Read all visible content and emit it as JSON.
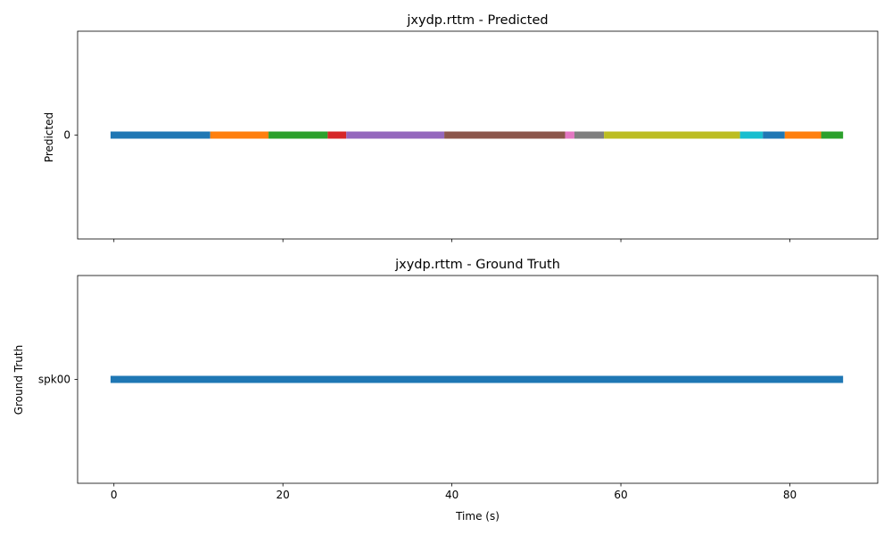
{
  "chart_data": [
    {
      "type": "timeline",
      "title": "jxydp.rttm - Predicted",
      "ylabel": "Predicted",
      "xlabel": "",
      "xlim": [
        -4.3,
        90.4
      ],
      "y_categories": [
        "0"
      ],
      "x_ticks": [
        0,
        20,
        40,
        60,
        80
      ],
      "x_tick_labels_visible": false,
      "segments": [
        {
          "speaker": "0",
          "start": -0.4,
          "end": 11.4,
          "color": "#1f77b4"
        },
        {
          "speaker": "0",
          "start": 11.4,
          "end": 18.3,
          "color": "#ff7f0e"
        },
        {
          "speaker": "0",
          "start": 18.3,
          "end": 25.3,
          "color": "#2ca02c"
        },
        {
          "speaker": "0",
          "start": 25.3,
          "end": 27.5,
          "color": "#d62728"
        },
        {
          "speaker": "0",
          "start": 27.5,
          "end": 39.1,
          "color": "#9467bd"
        },
        {
          "speaker": "0",
          "start": 39.1,
          "end": 53.4,
          "color": "#8c564b"
        },
        {
          "speaker": "0",
          "start": 53.4,
          "end": 54.5,
          "color": "#e377c2"
        },
        {
          "speaker": "0",
          "start": 54.5,
          "end": 58.0,
          "color": "#7f7f7f"
        },
        {
          "speaker": "0",
          "start": 58.0,
          "end": 74.1,
          "color": "#bcbd22"
        },
        {
          "speaker": "0",
          "start": 74.1,
          "end": 76.8,
          "color": "#17becf"
        },
        {
          "speaker": "0",
          "start": 76.8,
          "end": 79.4,
          "color": "#1f77b4"
        },
        {
          "speaker": "0",
          "start": 79.4,
          "end": 83.7,
          "color": "#ff7f0e"
        },
        {
          "speaker": "0",
          "start": 83.7,
          "end": 86.3,
          "color": "#2ca02c"
        }
      ]
    },
    {
      "type": "timeline",
      "title": "jxydp.rttm - Ground Truth",
      "ylabel": "Ground Truth",
      "xlabel": "Time (s)",
      "xlim": [
        -4.3,
        90.4
      ],
      "y_categories": [
        "spk00"
      ],
      "x_ticks": [
        0,
        20,
        40,
        60,
        80
      ],
      "x_tick_labels_visible": true,
      "segments": [
        {
          "speaker": "spk00",
          "start": -0.4,
          "end": 86.3,
          "color": "#1f77b4"
        }
      ]
    }
  ]
}
